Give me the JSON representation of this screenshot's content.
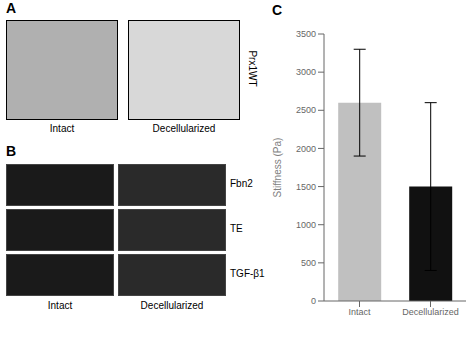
{
  "chart_data": {
    "type": "bar",
    "title": "C",
    "categories": [
      "Intact",
      "Decellularized"
    ],
    "values": [
      2600,
      1500
    ],
    "errors_lower": [
      700,
      1100
    ],
    "errors_upper": [
      700,
      1100
    ],
    "colors": [
      "#c0c0c0",
      "#111111"
    ],
    "ylabel": "Stiffness (Pa)",
    "ylim": [
      0,
      3500
    ],
    "yticks": [
      0,
      500,
      1000,
      1500,
      2000,
      2500,
      3000,
      3500
    ],
    "grid": false,
    "legend": false,
    "annotations": [
      "A",
      "Intact",
      "Decellularized",
      "Prx1WT",
      "B",
      "Intact",
      "Decellularized",
      "Fbn2",
      "TE",
      "TGF-β1"
    ]
  }
}
